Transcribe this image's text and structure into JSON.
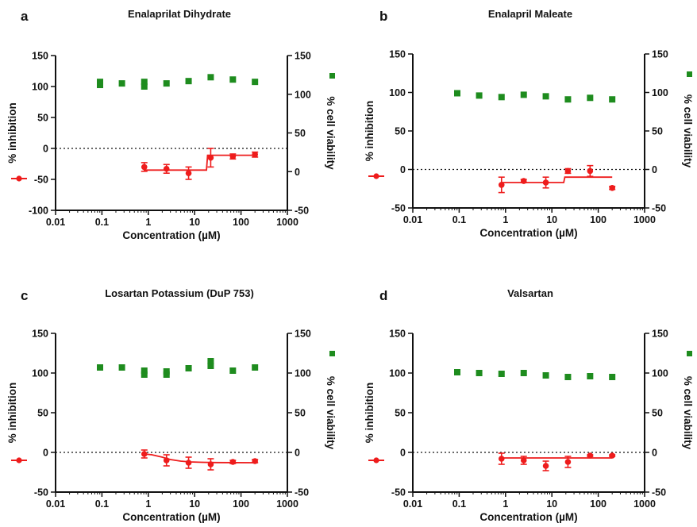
{
  "colors": {
    "inhibition": "#ee1c1c",
    "viability": "#1e8c1e",
    "axis": "#111111"
  },
  "chart_data": [
    {
      "type": "scatter",
      "panel_label": "a",
      "title": "Enalaprilat Dihydrate",
      "xlabel": "Concentration (µM)",
      "ylabel_left": "% inhibition",
      "ylabel_right": "% cell viability",
      "x_scale": "log",
      "xlim": [
        0.01,
        1000
      ],
      "x_ticks": [
        "0.01",
        "0.1",
        "1",
        "10",
        "100",
        "1000"
      ],
      "ylim_left": [
        -100,
        150
      ],
      "y_ticks_left": [
        "-100",
        "-50",
        "0",
        "50",
        "100",
        "150"
      ],
      "ylim_right": [
        -50,
        150
      ],
      "y_ticks_right": [
        "-50",
        "0",
        "50",
        "100",
        "150"
      ],
      "inhibition": {
        "x": [
          0.82,
          2.47,
          7.4,
          22.2,
          66.7,
          200
        ],
        "y": [
          -30,
          -33,
          -40,
          -15,
          -13,
          -10
        ],
        "err": [
          7,
          7,
          10,
          15,
          4,
          4
        ],
        "fit_x": [
          0.82,
          18,
          19,
          200
        ],
        "fit_y": [
          -35,
          -35,
          -11,
          -11
        ]
      },
      "viability": {
        "x": [
          0.091,
          0.091,
          0.27,
          0.82,
          0.82,
          2.47,
          7.4,
          22.2,
          66.7,
          200
        ],
        "y": [
          112,
          116,
          114,
          110,
          116,
          114,
          117,
          122,
          119,
          116
        ]
      }
    },
    {
      "type": "scatter",
      "panel_label": "b",
      "title": "Enalapril Maleate",
      "xlabel": "Concentration (µM)",
      "ylabel_left": "% inhibition",
      "ylabel_right": "% cell viability",
      "x_scale": "log",
      "xlim": [
        0.01,
        1000
      ],
      "x_ticks": [
        "0.01",
        "0.1",
        "1",
        "10",
        "100",
        "1000"
      ],
      "ylim_left": [
        -50,
        150
      ],
      "y_ticks_left": [
        "-50",
        "0",
        "50",
        "100",
        "150"
      ],
      "ylim_right": [
        -50,
        150
      ],
      "y_ticks_right": [
        "-50",
        "0",
        "50",
        "100",
        "150"
      ],
      "inhibition": {
        "x": [
          0.82,
          2.47,
          7.4,
          22.2,
          66.7,
          200
        ],
        "y": [
          -20,
          -15,
          -17,
          -2,
          -2,
          -24
        ],
        "err": [
          10,
          2,
          7,
          3,
          7,
          2
        ],
        "fit_x": [
          0.82,
          18,
          19,
          200
        ],
        "fit_y": [
          -17,
          -17,
          -10,
          -10
        ]
      },
      "viability": {
        "x": [
          0.091,
          0.27,
          0.82,
          2.47,
          7.4,
          22.2,
          66.7,
          200
        ],
        "y": [
          99,
          96,
          94,
          97,
          95,
          91,
          93,
          91
        ]
      }
    },
    {
      "type": "scatter",
      "panel_label": "c",
      "title": "Losartan Potassium (DuP 753)",
      "xlabel": "Concentration (µM)",
      "ylabel_left": "% inhibition",
      "ylabel_right": "% cell viability",
      "x_scale": "log",
      "xlim": [
        0.01,
        1000
      ],
      "x_ticks": [
        "0.01",
        "0.1",
        "1",
        "10",
        "100",
        "1000"
      ],
      "ylim_left": [
        -50,
        150
      ],
      "y_ticks_left": [
        "-50",
        "0",
        "50",
        "100",
        "150"
      ],
      "ylim_right": [
        -50,
        150
      ],
      "y_ticks_right": [
        "-50",
        "0",
        "50",
        "100",
        "150"
      ],
      "inhibition": {
        "x": [
          0.82,
          2.47,
          7.4,
          22.2,
          66.7,
          200
        ],
        "y": [
          -2,
          -10,
          -13,
          -15,
          -12,
          -11
        ],
        "err": [
          5,
          7,
          7,
          7,
          2,
          2
        ],
        "fit_x": [
          0.82,
          1.2,
          2,
          3,
          5,
          8,
          15,
          30,
          200
        ],
        "fit_y": [
          -2,
          -3,
          -6,
          -9,
          -11,
          -12,
          -12.5,
          -12.8,
          -13
        ]
      },
      "viability": {
        "x": [
          0.091,
          0.27,
          0.82,
          0.82,
          2.47,
          2.47,
          7.4,
          22.2,
          22.2,
          66.7,
          200
        ],
        "y": [
          107,
          107,
          98,
          103,
          98,
          102,
          106,
          109,
          115,
          103,
          107
        ]
      }
    },
    {
      "type": "scatter",
      "panel_label": "d",
      "title": "Valsartan",
      "xlabel": "Concentration (µM)",
      "ylabel_left": "% inhibition",
      "ylabel_right": "% cell viability",
      "x_scale": "log",
      "xlim": [
        0.01,
        1000
      ],
      "x_ticks": [
        "0.01",
        "0.1",
        "1",
        "10",
        "100",
        "1000"
      ],
      "ylim_left": [
        -50,
        150
      ],
      "y_ticks_left": [
        "-50",
        "0",
        "50",
        "100",
        "150"
      ],
      "ylim_right": [
        -50,
        150
      ],
      "y_ticks_right": [
        "-50",
        "0",
        "50",
        "100",
        "150"
      ],
      "inhibition": {
        "x": [
          0.82,
          2.47,
          7.4,
          22.2,
          66.7,
          200
        ],
        "y": [
          -8,
          -10,
          -17,
          -12,
          -4,
          -4
        ],
        "err": [
          7,
          5,
          6,
          7,
          1,
          1
        ],
        "fit_x": [
          0.82,
          200
        ],
        "fit_y": [
          -7,
          -7
        ]
      },
      "viability": {
        "x": [
          0.091,
          0.27,
          0.82,
          2.47,
          7.4,
          22.2,
          66.7,
          200
        ],
        "y": [
          101,
          100,
          99,
          100,
          97,
          95,
          96,
          95
        ]
      }
    }
  ]
}
